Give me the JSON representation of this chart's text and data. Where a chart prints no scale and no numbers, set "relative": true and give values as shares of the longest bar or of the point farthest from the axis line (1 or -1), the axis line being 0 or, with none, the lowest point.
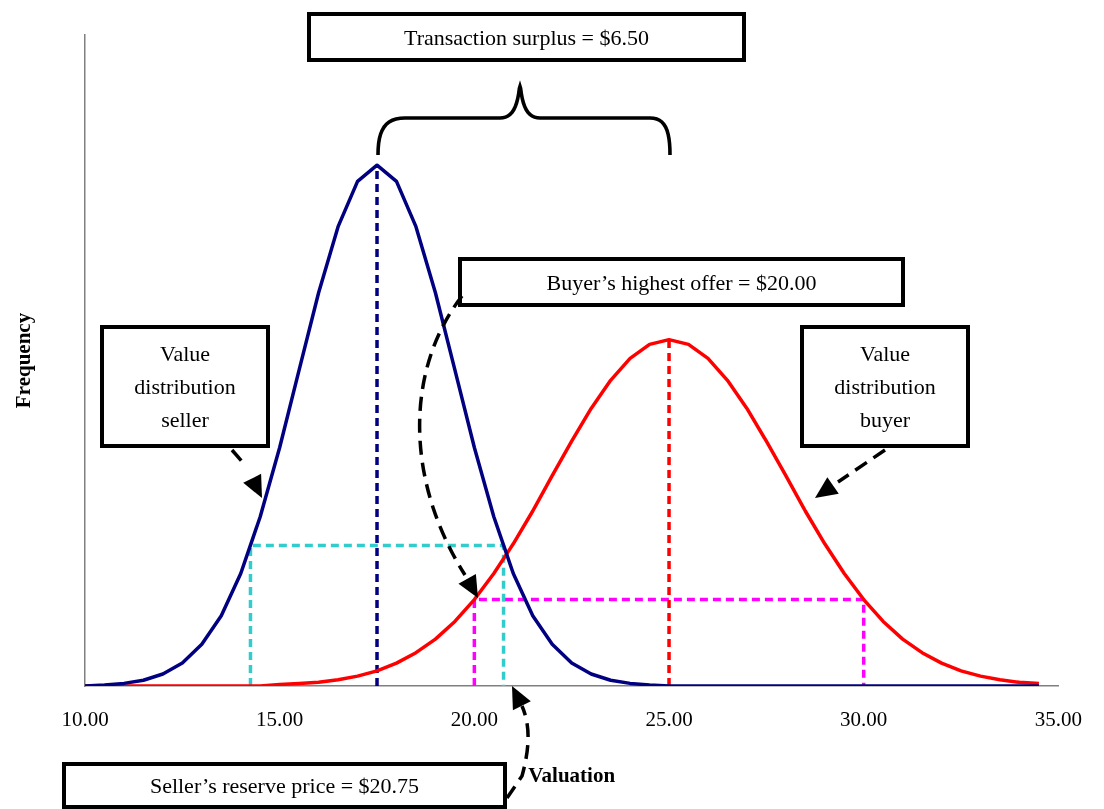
{
  "chart_data": {
    "type": "line",
    "relative": true,
    "marker": "none",
    "xlabel": "Valuation",
    "ylabel": "Frequency",
    "xlim": [
      10,
      35
    ],
    "xticks": [
      {
        "value": 10,
        "label": "10.00"
      },
      {
        "value": 15,
        "label": "15.00"
      },
      {
        "value": 20,
        "label": "20.00"
      },
      {
        "value": 25,
        "label": "25.00"
      },
      {
        "value": 30,
        "label": "30.00"
      },
      {
        "value": 35,
        "label": "35.00"
      }
    ],
    "x": [
      10,
      10.5,
      11,
      11.5,
      12,
      12.5,
      13,
      13.5,
      14,
      14.5,
      15,
      15.5,
      16,
      16.5,
      17,
      17.5,
      18,
      18.5,
      19,
      19.5,
      20,
      20.5,
      21,
      21.5,
      22,
      22.5,
      23,
      23.5,
      24,
      24.5,
      25,
      25.5,
      26,
      26.5,
      27,
      27.5,
      28,
      28.5,
      29,
      29.5,
      30,
      30.5,
      31,
      31.5,
      32,
      32.5,
      33,
      33.5,
      34,
      34.5
    ],
    "series": [
      {
        "color": "#000080",
        "values": [
          0,
          0.002,
          0.005,
          0.011,
          0.023,
          0.044,
          0.08,
          0.135,
          0.216,
          0.325,
          0.458,
          0.607,
          0.755,
          0.882,
          0.969,
          1,
          0.969,
          0.882,
          0.755,
          0.607,
          0.458,
          0.325,
          0.216,
          0.135,
          0.08,
          0.044,
          0.023,
          0.011,
          0.005,
          0.002,
          0,
          0,
          0,
          0,
          0,
          0,
          0,
          0,
          0,
          0,
          0,
          0,
          0,
          0,
          0,
          0,
          0,
          0,
          0,
          0
        ]
      },
      {
        "color": "#ff0000",
        "values": [
          0,
          0,
          0,
          0,
          0,
          0,
          0,
          0,
          0,
          0,
          0.003,
          0.005,
          0.007,
          0.012,
          0.019,
          0.029,
          0.044,
          0.064,
          0.09,
          0.124,
          0.166,
          0.216,
          0.273,
          0.336,
          0.404,
          0.47,
          0.533,
          0.587,
          0.629,
          0.656,
          0.665,
          0.656,
          0.629,
          0.587,
          0.533,
          0.47,
          0.404,
          0.336,
          0.273,
          0.216,
          0.166,
          0.124,
          0.09,
          0.064,
          0.044,
          0.029,
          0.019,
          0.012,
          0.007,
          0.005
        ]
      },
      {
        "color": "#000080",
        "line_style": "dashed",
        "x": [
          17.5,
          17.5
        ],
        "values": [
          0,
          1
        ]
      },
      {
        "color": "#ff0000",
        "line_style": "dashed",
        "x": [
          25,
          25
        ],
        "values": [
          0,
          0.665
        ]
      },
      {
        "color": "#33cccc",
        "line_style": "dashed",
        "x": [
          14.25,
          14.25,
          20.75,
          20.75
        ],
        "values": [
          0,
          0.27,
          0.27,
          0
        ]
      },
      {
        "color": "#ff00ff",
        "line_style": "dashed",
        "x": [
          20,
          20,
          30,
          30
        ],
        "values": [
          0,
          0.166,
          0.166,
          0
        ]
      }
    ],
    "annotations": [
      "Transaction surplus = $6.50",
      "Buyer’s highest offer = $20.00",
      "Value distribution seller",
      "Value distribution buyer",
      "Seller’s reserve price = $20.75"
    ]
  }
}
